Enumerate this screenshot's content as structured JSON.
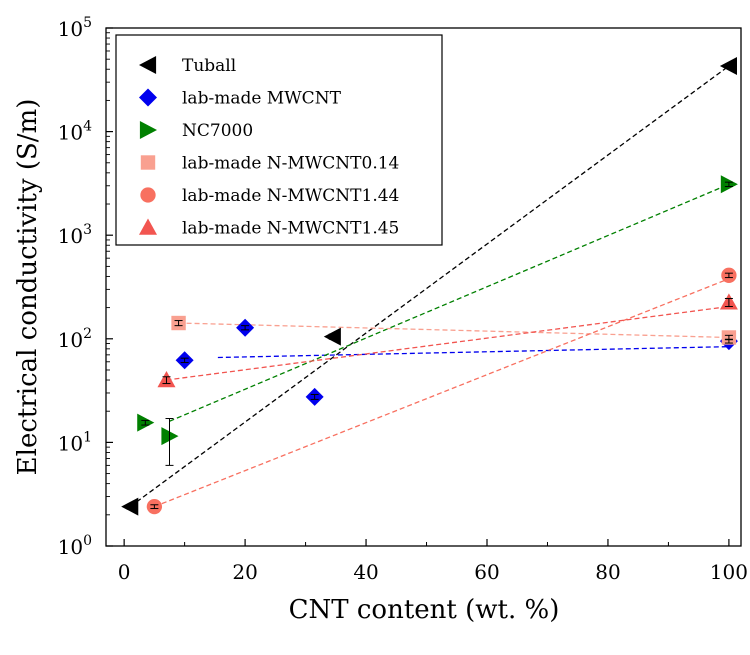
{
  "chart_data": {
    "type": "scatter",
    "xlabel": "CNT content (wt. %)",
    "ylabel": "Electrical conductivity (S/m)",
    "xlim": [
      -3,
      102
    ],
    "ylim": [
      1,
      100000
    ],
    "yscale": "log",
    "x_ticks": [
      0,
      20,
      40,
      60,
      80,
      100
    ],
    "y_ticks": [
      {
        "base": "10",
        "exp": "0",
        "value": 1
      },
      {
        "base": "10",
        "exp": "1",
        "value": 10
      },
      {
        "base": "10",
        "exp": "2",
        "value": 100
      },
      {
        "base": "10",
        "exp": "3",
        "value": 1000
      },
      {
        "base": "10",
        "exp": "4",
        "value": 10000
      },
      {
        "base": "10",
        "exp": "5",
        "value": 100000
      }
    ],
    "grid": false,
    "legend_position": "top-left",
    "series": [
      {
        "name": "Tuball",
        "marker": "triangle-left",
        "color": "#000000",
        "line_color": "#000000",
        "points": [
          {
            "x": 1,
            "y": 2.4,
            "err": 0.1
          },
          {
            "x": 34.5,
            "y": 105,
            "err": 6
          },
          {
            "x": 100,
            "y": 43000,
            "err": 1500
          }
        ],
        "trend": [
          [
            1,
            2.4
          ],
          [
            100,
            43000
          ]
        ]
      },
      {
        "name": "lab-made MWCNT",
        "marker": "diamond",
        "color": "#0000ee",
        "line_color": "#0000ee",
        "points": [
          {
            "x": 10,
            "y": 62,
            "err": 3
          },
          {
            "x": 20,
            "y": 128,
            "err": 6
          },
          {
            "x": 31.5,
            "y": 27.5,
            "err": 1.5
          },
          {
            "x": 100,
            "y": 95,
            "err": 4
          }
        ],
        "trend": [
          [
            15.5,
            66
          ],
          [
            100,
            84
          ]
        ]
      },
      {
        "name": "NC7000",
        "marker": "triangle-right",
        "color": "#008000",
        "line_color": "#008000",
        "points": [
          {
            "x": 3.5,
            "y": 15.5,
            "err": 0.8
          },
          {
            "x": 7.5,
            "y": 11.5,
            "err": 5.5
          },
          {
            "x": 100,
            "y": 3100,
            "err": 150
          }
        ],
        "trend": [
          [
            7.5,
            16
          ],
          [
            100,
            3100
          ]
        ]
      },
      {
        "name": "lab-made N-MWCNT0.14",
        "marker": "square",
        "color": "#f9a090",
        "line_color": "#f9a090",
        "points": [
          {
            "x": 9,
            "y": 142,
            "err": 8
          },
          {
            "x": 100,
            "y": 103,
            "err": 5
          }
        ],
        "trend": [
          [
            9,
            142
          ],
          [
            100,
            103
          ]
        ]
      },
      {
        "name": "lab-made N-MWCNT1.44",
        "marker": "circle",
        "color": "#f87060",
        "line_color": "#f87060",
        "points": [
          {
            "x": 5,
            "y": 2.4,
            "err": 0.1
          },
          {
            "x": 100,
            "y": 410,
            "err": 20
          }
        ],
        "trend": [
          [
            5,
            2.4
          ],
          [
            100,
            380
          ]
        ]
      },
      {
        "name": "lab-made N-MWCNT1.45",
        "marker": "triangle-up",
        "color": "#f25550",
        "line_color": "#f25550",
        "points": [
          {
            "x": 7,
            "y": 40,
            "err": 3
          },
          {
            "x": 100,
            "y": 225,
            "err": 20
          }
        ],
        "trend": [
          [
            7,
            40
          ],
          [
            100,
            205
          ]
        ]
      }
    ]
  }
}
